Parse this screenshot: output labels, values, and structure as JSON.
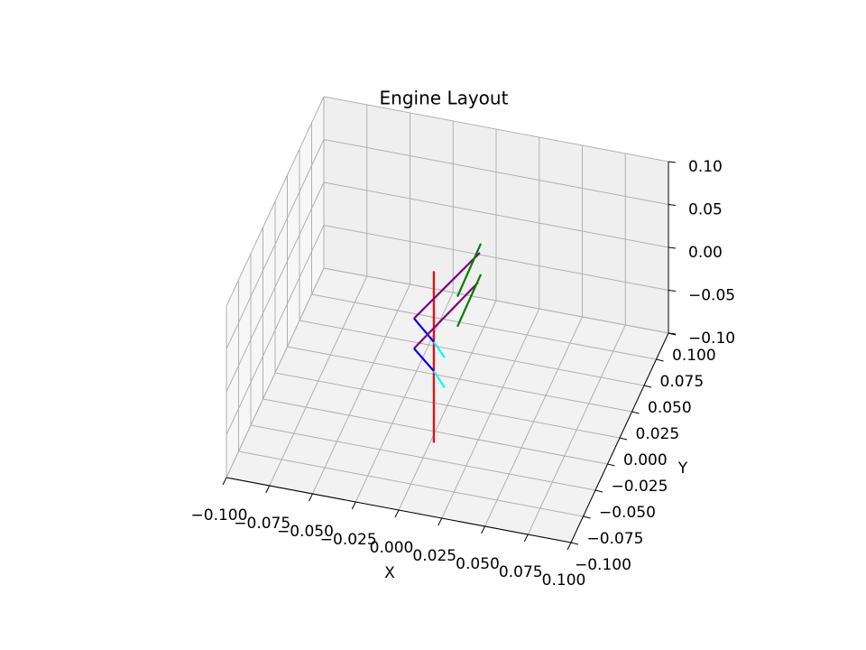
{
  "chart_data": {
    "type": "line3d",
    "title": "Engine Layout",
    "xlabel": "X",
    "ylabel": "Y",
    "xlim": [
      -0.1,
      0.1
    ],
    "ylim": [
      -0.1,
      0.1
    ],
    "zlim": [
      -0.1,
      0.1
    ],
    "xticks": [
      {
        "value": -0.1,
        "label": "−0.100"
      },
      {
        "value": -0.075,
        "label": "−0.075"
      },
      {
        "value": -0.05,
        "label": "−0.050"
      },
      {
        "value": -0.025,
        "label": "−0.025"
      },
      {
        "value": 0,
        "label": "0.000"
      },
      {
        "value": 0.025,
        "label": "0.025"
      },
      {
        "value": 0.05,
        "label": "0.050"
      },
      {
        "value": 0.075,
        "label": "0.075"
      },
      {
        "value": 0.1,
        "label": "0.100"
      }
    ],
    "yticks": [
      {
        "value": -0.1,
        "label": "−0.100"
      },
      {
        "value": -0.075,
        "label": "−0.075"
      },
      {
        "value": -0.05,
        "label": "−0.050"
      },
      {
        "value": -0.025,
        "label": "−0.025"
      },
      {
        "value": 0,
        "label": "0.000"
      },
      {
        "value": 0.025,
        "label": "0.025"
      },
      {
        "value": 0.05,
        "label": "0.050"
      },
      {
        "value": 0.075,
        "label": "0.075"
      },
      {
        "value": 0.1,
        "label": "0.100"
      }
    ],
    "zticks": [
      {
        "value": -0.1,
        "label": "−0.10"
      },
      {
        "value": -0.05,
        "label": "−0.05"
      },
      {
        "value": 0,
        "label": "0.00"
      },
      {
        "value": 0.05,
        "label": "0.05"
      },
      {
        "value": 0.1,
        "label": "0.10"
      }
    ],
    "grid": true,
    "series": [
      {
        "color": "red",
        "x": [
          0.002,
          0.002
        ],
        "y": [
          -0.035,
          -0.035
        ],
        "z": [
          0.1,
          -0.1
        ]
      },
      {
        "color": "purple",
        "x": [
          0.0188,
          -0.0194
        ],
        "y": [
          0,
          0
        ],
        "z": [
          0.085,
          -0.006
        ]
      },
      {
        "color": "blue",
        "x": [
          -0.0194,
          -0.0079
        ],
        "y": [
          0,
          0
        ],
        "z": [
          -0.006,
          -0.029
        ]
      },
      {
        "color": "cyan",
        "x": [
          -0.0079,
          -0.0016
        ],
        "y": [
          0,
          0
        ],
        "z": [
          -0.029,
          -0.045
        ]
      },
      {
        "color": "green",
        "x": [
          0.0194,
          0.0058
        ],
        "y": [
          0,
          0
        ],
        "z": [
          0.096,
          0.029
        ]
      },
      {
        "color": "purple",
        "x": [
          0.0178,
          -0.0194
        ],
        "y": [
          0,
          0
        ],
        "z": [
          0.05,
          -0.041
        ]
      },
      {
        "color": "blue",
        "x": [
          -0.0194,
          -0.0079
        ],
        "y": [
          0,
          0
        ],
        "z": [
          -0.041,
          -0.063
        ]
      },
      {
        "color": "cyan",
        "x": [
          -0.0079,
          -0.0016
        ],
        "y": [
          0,
          0
        ],
        "z": [
          -0.063,
          -0.08
        ]
      },
      {
        "color": "green",
        "x": [
          0.0194,
          0.0058
        ],
        "y": [
          0,
          0
        ],
        "z": [
          0.06,
          -0.006
        ]
      }
    ]
  }
}
